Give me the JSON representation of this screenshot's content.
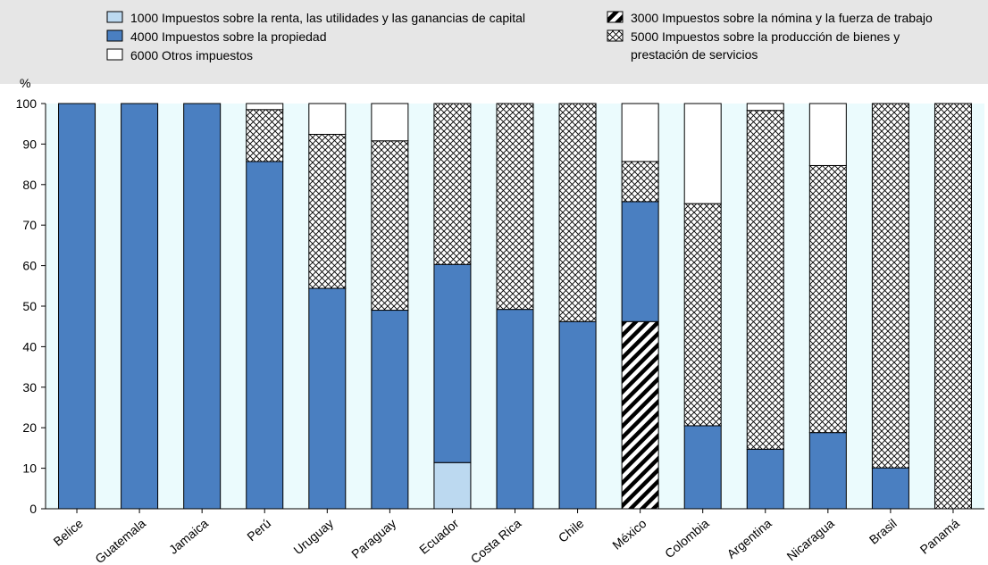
{
  "chart_data": {
    "type": "bar",
    "stacked": true,
    "y_unit": "%",
    "ylim": [
      0,
      100
    ],
    "yticks": [
      0,
      10,
      20,
      30,
      40,
      50,
      60,
      70,
      80,
      90,
      100
    ],
    "categories": [
      "Belice",
      "Guatemala",
      "Jamaica",
      "Perú",
      "Uruguay",
      "Paraguay",
      "Ecuador",
      "Costa Rica",
      "Chile",
      "México",
      "Colombia",
      "Argentina",
      "Nicaragua",
      "Brasil",
      "Panamá"
    ],
    "series": [
      {
        "name": "1000 Impuestos sobre la renta, las utilidades y las ganancias de capital",
        "color": "#bcd9f0",
        "pattern": "solid",
        "values": [
          0,
          0,
          0,
          0,
          0,
          0,
          11.4,
          0,
          0,
          0,
          0,
          0,
          0,
          0,
          0
        ]
      },
      {
        "name": "3000 Impuestos sobre la nómina y la fuerza de trabajo",
        "color": "#000000",
        "pattern": "diagonal",
        "values": [
          0,
          0,
          0,
          0,
          0,
          0,
          0,
          0,
          0,
          46.2,
          0,
          0,
          0,
          0,
          0
        ]
      },
      {
        "name": "4000 Impuestos sobre la propiedad",
        "color": "#4a7fc1",
        "pattern": "solid",
        "values": [
          100,
          100,
          100,
          85.7,
          54.4,
          49.0,
          48.9,
          49.2,
          46.2,
          29.6,
          20.5,
          14.7,
          18.8,
          10.1,
          0
        ]
      },
      {
        "name": "5000 Impuestos sobre la producción de bienes y prestación de servicios",
        "color": "#ffffff",
        "pattern": "crosshatch",
        "values": [
          0,
          0,
          0,
          12.8,
          38.0,
          41.8,
          39.7,
          50.8,
          53.8,
          9.9,
          54.8,
          83.6,
          65.9,
          89.9,
          100
        ]
      },
      {
        "name": "6000 Otros impuestos",
        "color": "#ffffff",
        "pattern": "solid",
        "values": [
          0,
          0,
          0,
          1.5,
          7.6,
          9.2,
          0,
          0,
          0,
          14.3,
          24.7,
          1.7,
          15.3,
          0,
          0
        ]
      }
    ],
    "legend": {
      "placement": "top",
      "rows": [
        {
          "left": {
            "series": 0,
            "lines": [
              "1000 Impuestos sobre la renta, las utilidades y las ganancias de capital"
            ]
          },
          "right": {
            "series": 1,
            "lines": [
              "3000 Impuestos sobre la nómina y la fuerza de trabajo"
            ]
          }
        },
        {
          "left": {
            "series": 2,
            "lines": [
              "4000 Impuestos sobre la propiedad"
            ]
          },
          "right": {
            "series": 3,
            "lines": [
              "5000 Impuestos sobre la producción de bienes y",
              "prestación de servicios"
            ]
          }
        },
        {
          "left": {
            "series": 4,
            "lines": [
              "6000 Otros impuestos"
            ]
          },
          "right": null
        }
      ]
    },
    "colors": {
      "legend_background": "#e6e6e6",
      "plot_stripe": "#ebfbfd",
      "bar_outline": "#000000",
      "axis": "#000000"
    }
  }
}
